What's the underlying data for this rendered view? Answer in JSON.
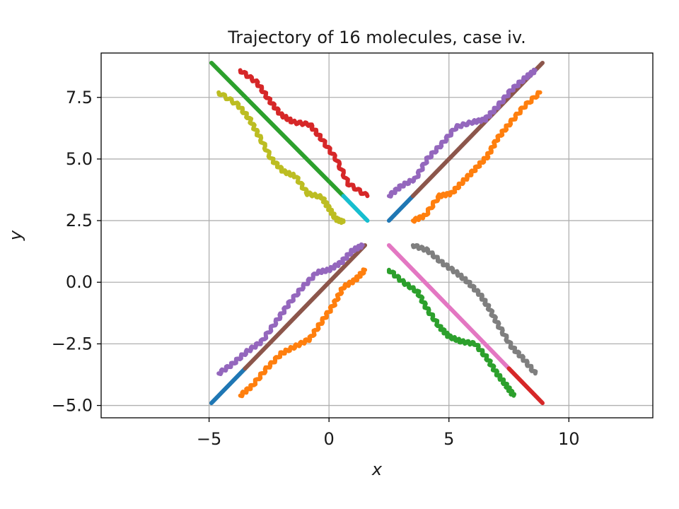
{
  "chart_data": {
    "type": "line",
    "title": "Trajectory of 16 molecules, case iv.",
    "xlabel": "x",
    "ylabel": "y",
    "xlim": [
      -9.5,
      13.5
    ],
    "ylim": [
      -5.5,
      9.3
    ],
    "xticks": [
      -5,
      0,
      5,
      10
    ],
    "xtick_labels": [
      "−5",
      "0",
      "5",
      "10"
    ],
    "yticks": [
      -5.0,
      -2.5,
      0.0,
      2.5,
      5.0,
      7.5
    ],
    "ytick_labels": [
      "−5.0",
      "−2.5",
      "0.0",
      "2.5",
      "5.0",
      "7.5"
    ],
    "grid": true,
    "line_width": 6,
    "series": [
      {
        "color": "#2ca02c",
        "wiggly": false,
        "x": [
          -4.9,
          0.6
        ],
        "y": [
          8.9,
          3.5
        ]
      },
      {
        "color": "#17becf",
        "wiggly": false,
        "x": [
          0.6,
          1.6
        ],
        "y": [
          3.5,
          2.5
        ]
      },
      {
        "color": "#d62728",
        "wiggly": true,
        "x": [
          -3.7,
          -3.0,
          -2.5,
          -2.0,
          -1.5,
          -0.8,
          -0.3,
          0.3,
          0.8,
          1.6
        ],
        "y": [
          8.6,
          8.1,
          7.4,
          6.8,
          6.5,
          6.4,
          5.8,
          5.0,
          4.0,
          3.5
        ]
      },
      {
        "color": "#bcbd22",
        "wiggly": true,
        "x": [
          -4.6,
          -3.8,
          -3.3,
          -2.9,
          -2.4,
          -1.9,
          -1.4,
          -0.9,
          -0.3,
          0.0,
          0.3,
          0.6
        ],
        "y": [
          7.7,
          7.2,
          6.6,
          5.9,
          5.0,
          4.5,
          4.3,
          3.6,
          3.45,
          3.0,
          2.55,
          2.45
        ]
      },
      {
        "color": "#1f77b4",
        "wiggly": false,
        "x": [
          2.5,
          3.5
        ],
        "y": [
          2.5,
          3.5
        ]
      },
      {
        "color": "#8c564b",
        "wiggly": false,
        "x": [
          3.5,
          8.9
        ],
        "y": [
          3.5,
          8.9
        ]
      },
      {
        "color": "#9467bd",
        "wiggly": true,
        "x": [
          2.5,
          3.0,
          3.6,
          4.1,
          4.7,
          5.3,
          6.0,
          6.5,
          7.0,
          7.6,
          8.2,
          8.6
        ],
        "y": [
          3.5,
          3.9,
          4.2,
          5.0,
          5.6,
          6.3,
          6.5,
          6.6,
          7.1,
          7.8,
          8.3,
          8.6
        ]
      },
      {
        "color": "#ff7f0e",
        "wiggly": true,
        "x": [
          3.5,
          4.0,
          4.6,
          5.1,
          5.6,
          6.1,
          6.6,
          7.0,
          7.5,
          8.1,
          8.8
        ],
        "y": [
          2.5,
          2.7,
          3.5,
          3.6,
          4.1,
          4.6,
          5.1,
          5.8,
          6.4,
          7.1,
          7.7
        ]
      },
      {
        "color": "#1f77b4",
        "wiggly": false,
        "x": [
          -4.9,
          -3.5
        ],
        "y": [
          -4.9,
          -3.5
        ]
      },
      {
        "color": "#8c564b",
        "wiggly": false,
        "x": [
          -3.5,
          1.5
        ],
        "y": [
          -3.5,
          1.5
        ]
      },
      {
        "color": "#9467bd",
        "wiggly": true,
        "x": [
          -4.6,
          -4.0,
          -3.4,
          -2.8,
          -2.2,
          -1.7,
          -1.1,
          -0.5,
          0.0,
          0.5,
          1.0,
          1.4
        ],
        "y": [
          -3.7,
          -3.3,
          -2.8,
          -2.4,
          -1.6,
          -0.9,
          -0.2,
          0.4,
          0.5,
          0.8,
          1.3,
          1.5
        ]
      },
      {
        "color": "#ff7f0e",
        "wiggly": true,
        "x": [
          -3.7,
          -3.2,
          -2.6,
          -2.0,
          -1.4,
          -0.8,
          -0.3,
          0.2,
          0.6,
          1.1,
          1.5
        ],
        "y": [
          -4.6,
          -4.2,
          -3.5,
          -2.9,
          -2.6,
          -2.3,
          -1.6,
          -0.9,
          -0.2,
          0.1,
          0.5
        ]
      },
      {
        "color": "#e377c2",
        "wiggly": false,
        "x": [
          2.5,
          7.5
        ],
        "y": [
          1.5,
          -3.5
        ]
      },
      {
        "color": "#d62728",
        "wiggly": false,
        "x": [
          7.5,
          8.9
        ],
        "y": [
          -3.5,
          -4.9
        ]
      },
      {
        "color": "#7f7f7f",
        "wiggly": true,
        "x": [
          3.5,
          4.1,
          4.7,
          5.3,
          5.8,
          6.3,
          6.7,
          7.1,
          7.6,
          8.1,
          8.6
        ],
        "y": [
          1.5,
          1.3,
          0.8,
          0.4,
          0.0,
          -0.5,
          -1.1,
          -1.8,
          -2.6,
          -3.1,
          -3.7
        ]
      },
      {
        "color": "#2ca02c",
        "wiggly": true,
        "x": [
          2.5,
          3.1,
          3.7,
          4.1,
          4.6,
          5.0,
          5.5,
          6.1,
          6.6,
          7.0,
          7.4,
          7.7
        ],
        "y": [
          0.5,
          0.0,
          -0.4,
          -1.1,
          -1.8,
          -2.2,
          -2.4,
          -2.5,
          -3.1,
          -3.7,
          -4.2,
          -4.6
        ]
      }
    ]
  }
}
